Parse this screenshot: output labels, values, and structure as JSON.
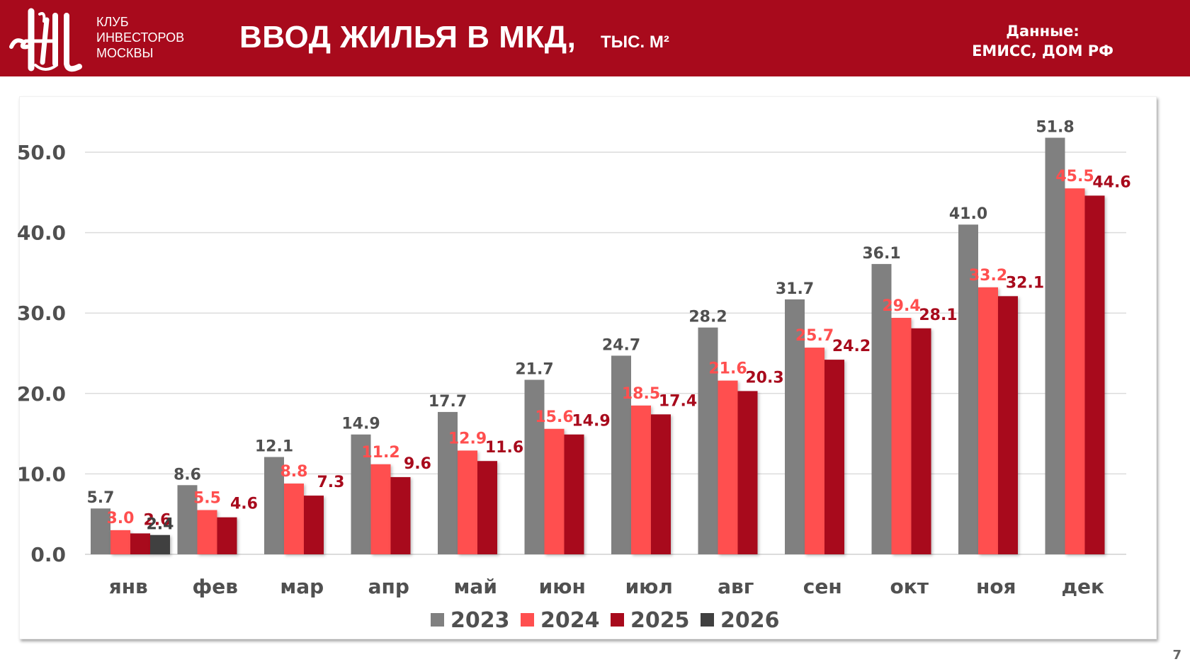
{
  "header": {
    "club_lines": [
      "КЛУБ",
      "ИНВЕСТОРОВ",
      "МОСКВЫ"
    ],
    "title": "ВВОД ЖИЛЬЯ В МКД,",
    "subtitle": "ТЫС. М²",
    "source_label": "Данные:",
    "source_value": "ЕМИСС, ДОМ РФ"
  },
  "page_number": "7",
  "colors": {
    "brand": "#a80a1c",
    "series_2023": "#808080",
    "series_2024": "#ff4f4f",
    "series_2025": "#a80a1c",
    "series_2026": "#404040"
  },
  "chart_data": {
    "type": "bar",
    "title": "ВВОД ЖИЛЬЯ В МКД, ТЫС. М²",
    "xlabel": "",
    "ylabel": "",
    "ylim": [
      0,
      55
    ],
    "yticks": [
      0,
      10,
      20,
      30,
      40,
      50
    ],
    "ytick_labels": [
      "0.0",
      "10.0",
      "20.0",
      "30.0",
      "40.0",
      "50.0"
    ],
    "grid": true,
    "legend_position": "bottom",
    "categories": [
      "янв",
      "фев",
      "мар",
      "апр",
      "май",
      "июн",
      "июл",
      "авг",
      "сен",
      "окт",
      "ноя",
      "дек"
    ],
    "series": [
      {
        "name": "2023",
        "color": "#808080",
        "label_color": "#505050",
        "values": [
          5.7,
          8.6,
          12.1,
          14.9,
          17.7,
          21.7,
          24.7,
          28.2,
          31.7,
          36.1,
          41.0,
          51.8
        ]
      },
      {
        "name": "2024",
        "color": "#ff4f4f",
        "label_color": "#ff4f4f",
        "values": [
          3.0,
          5.5,
          8.8,
          11.2,
          12.9,
          15.6,
          18.5,
          21.6,
          25.7,
          29.4,
          33.2,
          45.5
        ]
      },
      {
        "name": "2025",
        "color": "#a80a1c",
        "label_color": "#a80a1c",
        "values": [
          2.6,
          4.6,
          7.3,
          9.6,
          11.6,
          14.9,
          17.4,
          20.3,
          24.2,
          28.1,
          32.1,
          44.6
        ]
      },
      {
        "name": "2026",
        "color": "#404040",
        "label_color": "#404040",
        "values": [
          2.4,
          null,
          null,
          null,
          null,
          null,
          null,
          null,
          null,
          null,
          null,
          null
        ]
      }
    ]
  }
}
